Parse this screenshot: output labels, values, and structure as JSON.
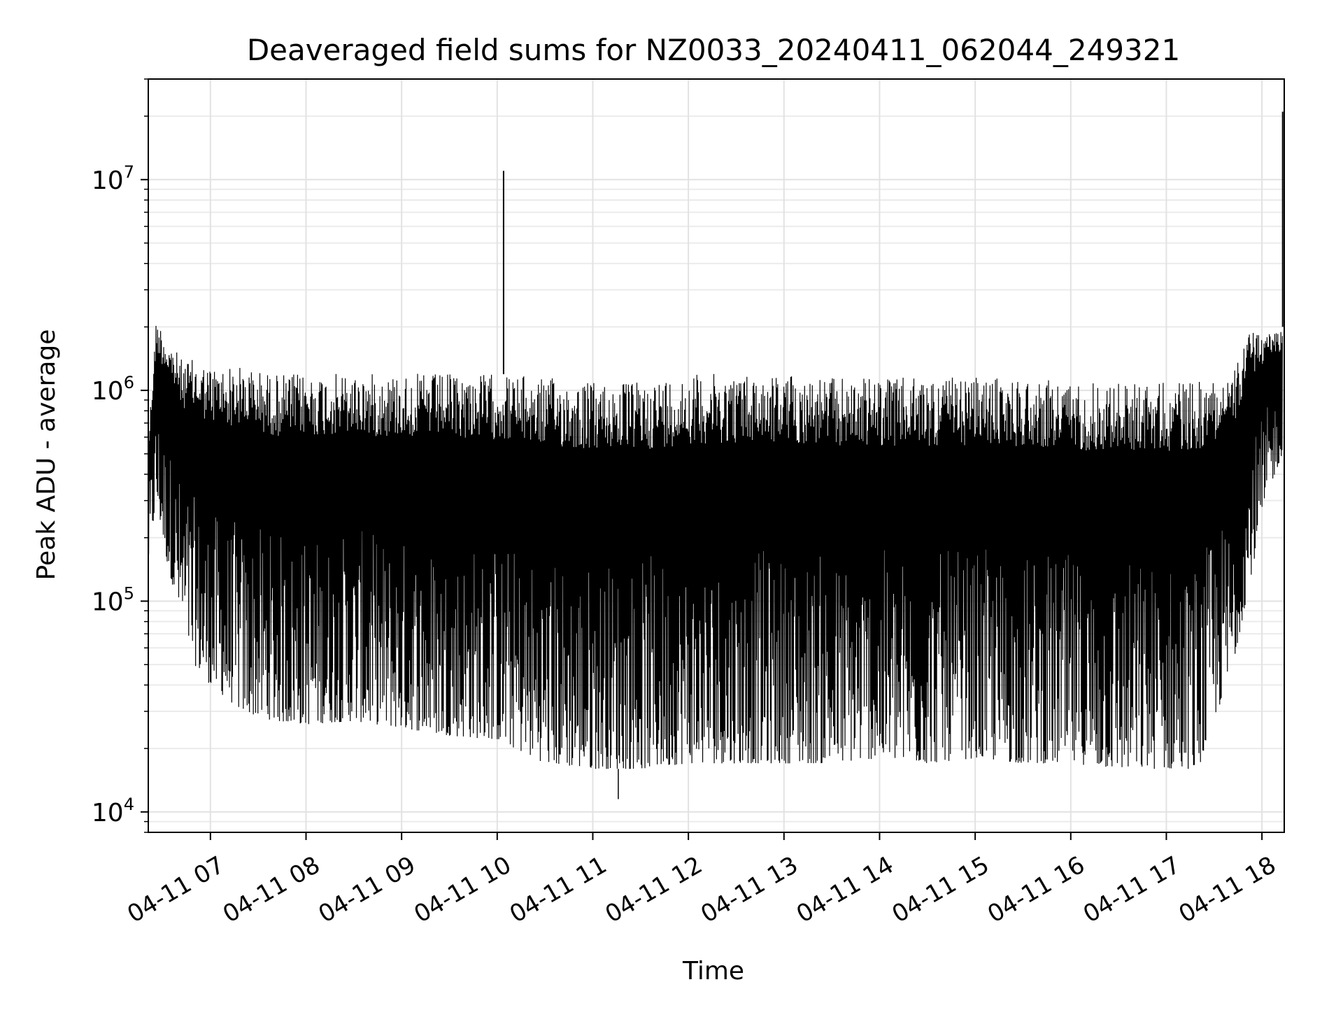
{
  "chart_data": {
    "type": "line",
    "title": "Deaveraged field sums for NZ0033_20240411_062044_249321",
    "xlabel": "Time",
    "ylabel": "Peak ADU - average",
    "x_axis": {
      "type": "datetime",
      "range": [
        "2024-04-11T06:21:00",
        "2024-04-11T18:14:00"
      ],
      "ticks": [
        {
          "value": "2024-04-11T07:00:00",
          "label": "04-11 07"
        },
        {
          "value": "2024-04-11T08:00:00",
          "label": "04-11 08"
        },
        {
          "value": "2024-04-11T09:00:00",
          "label": "04-11 09"
        },
        {
          "value": "2024-04-11T10:00:00",
          "label": "04-11 10"
        },
        {
          "value": "2024-04-11T11:00:00",
          "label": "04-11 11"
        },
        {
          "value": "2024-04-11T12:00:00",
          "label": "04-11 12"
        },
        {
          "value": "2024-04-11T13:00:00",
          "label": "04-11 13"
        },
        {
          "value": "2024-04-11T14:00:00",
          "label": "04-11 14"
        },
        {
          "value": "2024-04-11T15:00:00",
          "label": "04-11 15"
        },
        {
          "value": "2024-04-11T16:00:00",
          "label": "04-11 16"
        },
        {
          "value": "2024-04-11T17:00:00",
          "label": "04-11 17"
        },
        {
          "value": "2024-04-11T18:00:00",
          "label": "04-11 18"
        }
      ]
    },
    "y_axis": {
      "scale": "log",
      "range": [
        8000,
        30000000
      ],
      "ticks": [
        {
          "value": 10000,
          "base": "10",
          "exp": "4"
        },
        {
          "value": 100000,
          "base": "10",
          "exp": "5"
        },
        {
          "value": 1000000,
          "base": "10",
          "exp": "6"
        },
        {
          "value": 10000000,
          "base": "10",
          "exp": "7"
        }
      ]
    },
    "grid": "major and minor",
    "line_color": "#000000",
    "series": [
      {
        "envelope": [
          {
            "t": "2024-04-11T06:21:00",
            "lo": 150000,
            "hi": 600000
          },
          {
            "t": "2024-04-11T06:26:00",
            "lo": 300000,
            "hi": 2200000
          },
          {
            "t": "2024-04-11T06:33:00",
            "lo": 150000,
            "hi": 1800000
          },
          {
            "t": "2024-04-11T06:42:00",
            "lo": 80000,
            "hi": 1400000
          },
          {
            "t": "2024-04-11T06:50:00",
            "lo": 50000,
            "hi": 1400000
          },
          {
            "t": "2024-04-11T07:00:00",
            "lo": 40000,
            "hi": 1300000
          },
          {
            "t": "2024-04-11T07:20:00",
            "lo": 30000,
            "hi": 1300000
          },
          {
            "t": "2024-04-11T07:40:00",
            "lo": 27000,
            "hi": 1200000
          },
          {
            "t": "2024-04-11T08:00:00",
            "lo": 26000,
            "hi": 1200000
          },
          {
            "t": "2024-04-11T08:30:00",
            "lo": 27000,
            "hi": 1200000
          },
          {
            "t": "2024-04-11T09:00:00",
            "lo": 25000,
            "hi": 1200000
          },
          {
            "t": "2024-04-11T09:30:00",
            "lo": 23000,
            "hi": 1200000
          },
          {
            "t": "2024-04-11T10:00:00",
            "lo": 22000,
            "hi": 1200000
          },
          {
            "t": "2024-04-11T10:30:00",
            "lo": 17000,
            "hi": 1150000
          },
          {
            "t": "2024-04-11T11:00:00",
            "lo": 16000,
            "hi": 1100000
          },
          {
            "t": "2024-04-11T11:30:00",
            "lo": 16000,
            "hi": 1100000
          },
          {
            "t": "2024-04-11T12:00:00",
            "lo": 17000,
            "hi": 1200000
          },
          {
            "t": "2024-04-11T12:30:00",
            "lo": 17000,
            "hi": 1200000
          },
          {
            "t": "2024-04-11T13:00:00",
            "lo": 17000,
            "hi": 1200000
          },
          {
            "t": "2024-04-11T13:30:00",
            "lo": 17000,
            "hi": 1150000
          },
          {
            "t": "2024-04-11T14:00:00",
            "lo": 18000,
            "hi": 1150000
          },
          {
            "t": "2024-04-11T14:30:00",
            "lo": 17000,
            "hi": 1150000
          },
          {
            "t": "2024-04-11T15:00:00",
            "lo": 18000,
            "hi": 1150000
          },
          {
            "t": "2024-04-11T15:30:00",
            "lo": 17000,
            "hi": 1150000
          },
          {
            "t": "2024-04-11T16:00:00",
            "lo": 17000,
            "hi": 1100000
          },
          {
            "t": "2024-04-11T16:30:00",
            "lo": 16000,
            "hi": 1100000
          },
          {
            "t": "2024-04-11T17:00:00",
            "lo": 16000,
            "hi": 1100000
          },
          {
            "t": "2024-04-11T17:20:00",
            "lo": 16000,
            "hi": 1100000
          },
          {
            "t": "2024-04-11T17:42:00",
            "lo": 50000,
            "hi": 1200000
          },
          {
            "t": "2024-04-11T17:52:00",
            "lo": 120000,
            "hi": 1900000
          },
          {
            "t": "2024-04-11T18:05:00",
            "lo": 350000,
            "hi": 1900000
          },
          {
            "t": "2024-04-11T18:13:00",
            "lo": 500000,
            "hi": 2000000
          }
        ],
        "spikes": [
          {
            "t": "2024-04-11T10:04:00",
            "value": 11000000
          },
          {
            "t": "2024-04-11T18:13:00",
            "value": 21000000
          }
        ],
        "minimum": {
          "t": "2024-04-11T11:16:00",
          "value": 11500
        }
      }
    ]
  }
}
